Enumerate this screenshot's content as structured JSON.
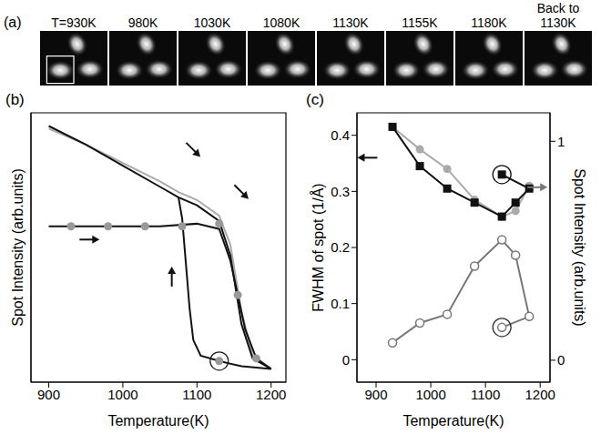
{
  "image_strip": {
    "panel_label": "(a)",
    "frames": [
      {
        "label": "T=930K"
      },
      {
        "label": "980K"
      },
      {
        "label": "1030K"
      },
      {
        "label": "1080K"
      },
      {
        "label": "1130K"
      },
      {
        "label": "1155K"
      },
      {
        "label": "1180K"
      },
      {
        "label": "Back to 1130K"
      }
    ]
  },
  "chart_data": [
    {
      "type": "line",
      "panel_label": "(b)",
      "xlabel": "Temperature(K)",
      "ylabel": "Spot Intensity (arb.units)",
      "xlim": [
        876,
        1220
      ],
      "xticks": [
        900,
        1000,
        1100,
        1200
      ],
      "ylim": [
        0,
        1.02
      ],
      "yticks": [],
      "tick_labels": "x",
      "series": [
        {
          "color": "#aaaaaa",
          "marker": "none",
          "line_style": "solid",
          "x": [
            900,
            950,
            1000,
            1050,
            1075,
            1100,
            1130,
            1145,
            1160,
            1175,
            1200
          ],
          "values": [
            0.96,
            0.9,
            0.83,
            0.76,
            0.72,
            0.69,
            0.63,
            0.52,
            0.27,
            0.1,
            0.05
          ]
        },
        {
          "color": "#111111",
          "marker": "none",
          "line_style": "solid",
          "x": [
            900,
            950,
            1000,
            1050,
            1075,
            1100,
            1130,
            1145,
            1160,
            1175,
            1200
          ],
          "values": [
            0.97,
            0.9,
            0.82,
            0.74,
            0.7,
            0.67,
            0.61,
            0.48,
            0.22,
            0.09,
            0.05
          ]
        },
        {
          "color": "#111111",
          "marker": "none",
          "line_style": "solid",
          "x": [
            1075,
            1080,
            1085,
            1090,
            1095,
            1105,
            1130,
            1160,
            1200
          ],
          "values": [
            0.7,
            0.62,
            0.45,
            0.28,
            0.16,
            0.1,
            0.08,
            0.06,
            0.05
          ]
        },
        {
          "color": "#111111",
          "marker": "none",
          "line_style": "solid",
          "x": [
            900,
            950,
            1000,
            1050,
            1100,
            1130,
            1145,
            1155,
            1165,
            1180,
            1200
          ],
          "values": [
            0.59,
            0.59,
            0.59,
            0.59,
            0.6,
            0.58,
            0.46,
            0.33,
            0.2,
            0.09,
            0.05
          ]
        },
        {
          "color": "#999999",
          "marker": "circle",
          "line_style": "none",
          "x": [
            930,
            980,
            1030,
            1080,
            1130,
            1155,
            1180
          ],
          "values": [
            0.59,
            0.59,
            0.59,
            0.59,
            0.6,
            0.33,
            0.09
          ]
        },
        {
          "color": "#999999",
          "marker": "circled",
          "line_style": "none",
          "x": [
            1130
          ],
          "values": [
            0.08
          ]
        }
      ],
      "annotations": [
        {
          "type": "arrow",
          "x": 955,
          "y": 0.54,
          "direction": "right",
          "color": "#111111"
        },
        {
          "type": "arrow",
          "x": 1095,
          "y": 0.88,
          "direction": "down-right",
          "color": "#111111"
        },
        {
          "type": "arrow",
          "x": 1160,
          "y": 0.72,
          "direction": "down-right",
          "color": "#111111"
        },
        {
          "type": "arrow",
          "x": 1066,
          "y": 0.4,
          "direction": "up",
          "color": "#111111"
        }
      ]
    },
    {
      "type": "line",
      "panel_label": "(c)",
      "xlabel": "Temperature(K)",
      "ylabel": "FWHM of spot (1/Å)",
      "y2label": "Spot Intensity (arb.units)",
      "xlim": [
        865,
        1218
      ],
      "xticks": [
        900,
        1000,
        1100,
        1200
      ],
      "ylim": [
        -0.04,
        0.44
      ],
      "yticks": [
        0,
        0.1,
        0.2,
        0.3,
        0.4
      ],
      "y2lim": [
        -0.1,
        1.13
      ],
      "y2ticks": [
        0,
        1
      ],
      "series": [
        {
          "color": "#aaaaaa",
          "marker": "circle",
          "line_style": "solid",
          "x": [
            930,
            980,
            1030,
            1080,
            1130,
            1155,
            1180
          ],
          "values": [
            0.415,
            0.375,
            0.34,
            0.285,
            0.255,
            0.265,
            0.31
          ]
        },
        {
          "color": "#111111",
          "marker": "square",
          "line_style": "solid",
          "x": [
            930,
            980,
            1030,
            1080,
            1130,
            1155,
            1180,
            1130
          ],
          "values": [
            0.415,
            0.345,
            0.305,
            0.28,
            0.255,
            0.28,
            0.305,
            0.33
          ]
        },
        {
          "color": "#111111",
          "marker": "ring",
          "line_style": "none",
          "x": [
            1130
          ],
          "values": [
            0.33
          ]
        },
        {
          "color": "#777777",
          "marker": "open_circle",
          "line_style": "solid",
          "axis": "y2",
          "x": [
            930,
            980,
            1030,
            1080,
            1130,
            1155,
            1180,
            1130
          ],
          "values": [
            0.08,
            0.17,
            0.21,
            0.43,
            0.55,
            0.48,
            0.2,
            0.15
          ]
        },
        {
          "color": "#333333",
          "marker": "ring",
          "line_style": "none",
          "axis": "y2",
          "x": [
            1130
          ],
          "values": [
            0.15
          ]
        }
      ],
      "annotations": [
        {
          "type": "arrow",
          "x": 884,
          "y": 0.36,
          "direction": "left",
          "color": "#111111"
        },
        {
          "type": "arrow",
          "x": 1195,
          "y": 0.79,
          "direction": "right",
          "color": "#777777",
          "axis": "y2"
        }
      ]
    }
  ]
}
